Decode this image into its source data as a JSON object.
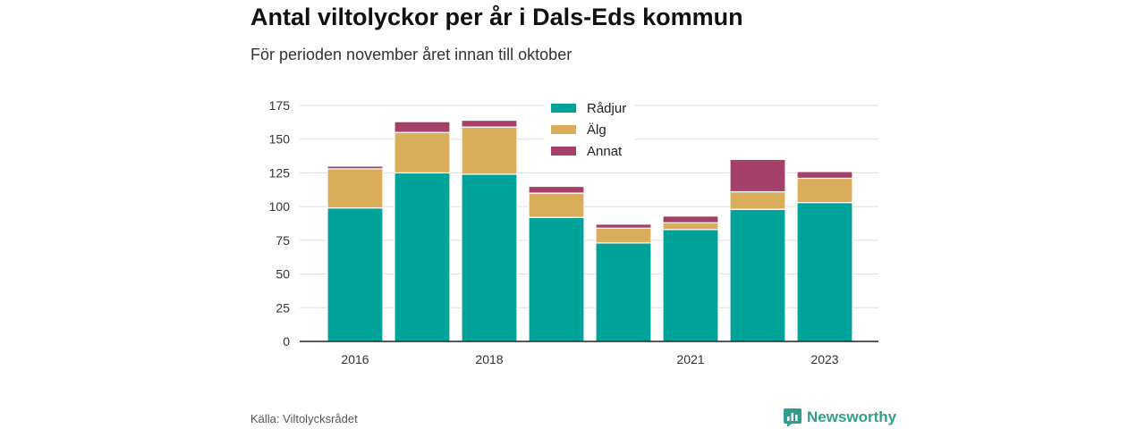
{
  "header": {
    "title": "Antal viltolyckor per år i Dals-Eds kommun",
    "subtitle": "För perioden november året innan till oktober"
  },
  "footer": {
    "source": "Källa: Viltolycksrådet",
    "brand": "Newsworthy",
    "brand_icon": "newsworthy-logo-icon"
  },
  "colors": {
    "radjur": "#00a39a",
    "alg": "#d9ad5a",
    "annat": "#a5406a",
    "brand": "#2f9f8c"
  },
  "chart_data": {
    "type": "bar",
    "stacked": true,
    "categories": [
      "2016",
      "2017",
      "2018",
      "2019",
      "2020",
      "2021",
      "2022",
      "2023"
    ],
    "x_tick_labels": [
      "2016",
      "",
      "2018",
      "",
      "",
      "2021",
      "",
      "2023"
    ],
    "series": [
      {
        "name": "Rådjur",
        "color": "#00a39a",
        "values": [
          99,
          125,
          124,
          92,
          73,
          83,
          98,
          103
        ]
      },
      {
        "name": "Älg",
        "color": "#d9ad5a",
        "values": [
          29,
          30,
          35,
          18,
          11,
          5,
          13,
          18
        ]
      },
      {
        "name": "Annat",
        "color": "#a5406a",
        "values": [
          2,
          8,
          5,
          5,
          3,
          5,
          24,
          5
        ]
      }
    ],
    "ylim": [
      0,
      175
    ],
    "yticks": [
      0,
      25,
      50,
      75,
      100,
      125,
      150,
      175
    ],
    "grid": true,
    "legend_position": "top-center"
  }
}
